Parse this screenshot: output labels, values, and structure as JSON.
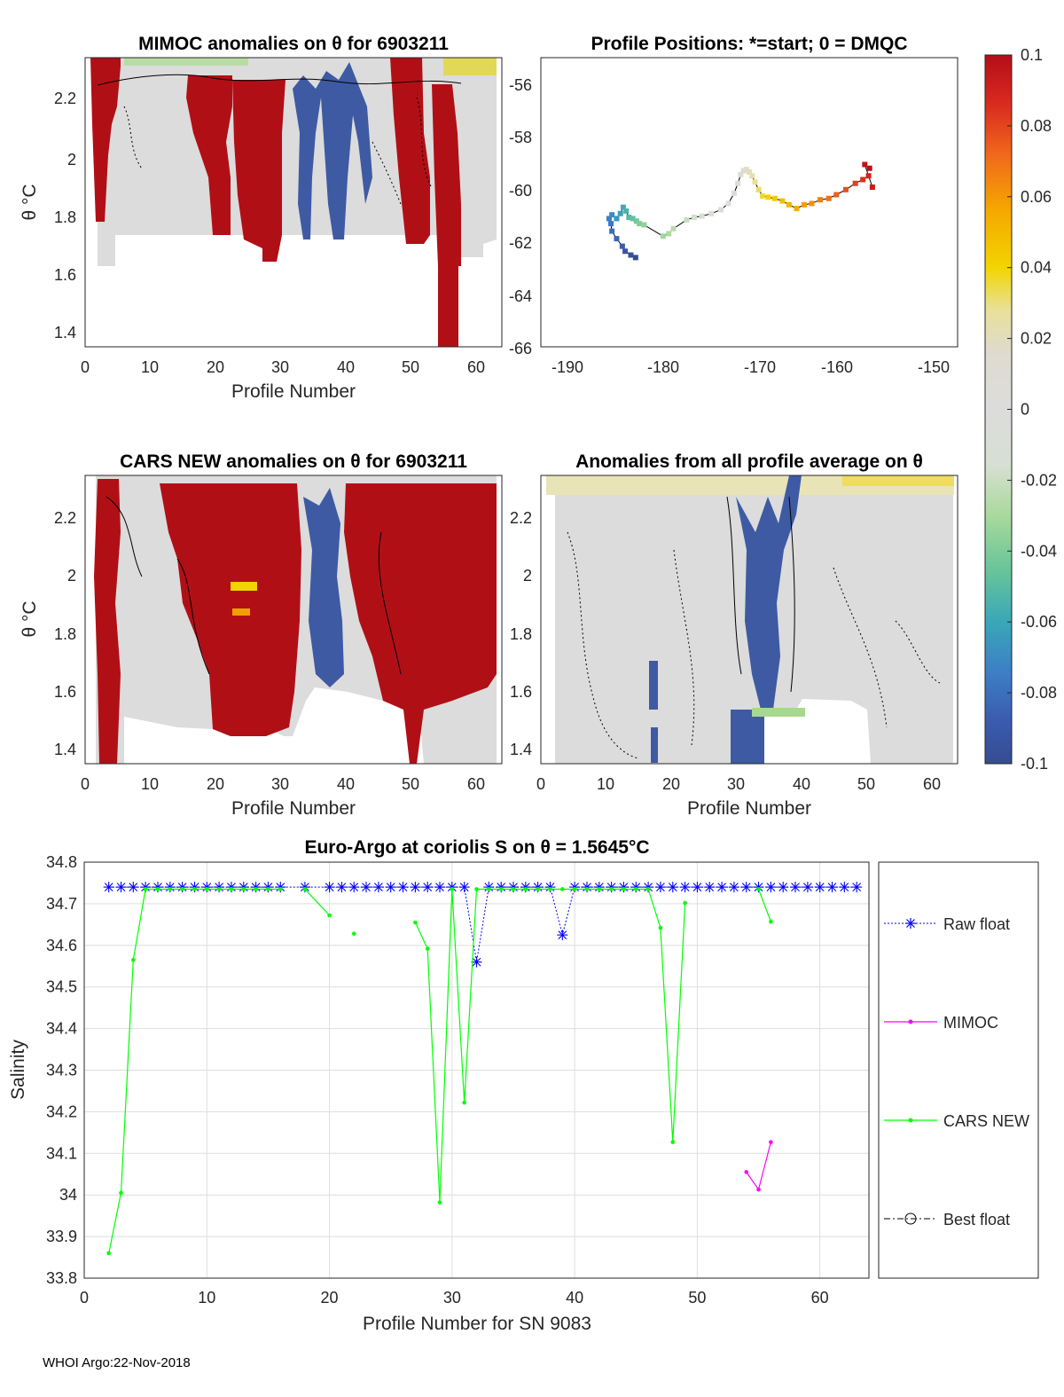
{
  "footer": "WHOI Argo:22-Nov-2018",
  "colorbar": {
    "ticks": [
      "0.1",
      "0.08",
      "0.06",
      "0.04",
      "0.02",
      "0",
      "-0.02",
      "-0.04",
      "-0.06",
      "-0.08",
      "-0.1"
    ],
    "range": [
      -0.1,
      0.1
    ]
  },
  "chart_data": [
    {
      "id": "mimoc_anomalies",
      "type": "heatmap",
      "title": "MIMOC anomalies on θ  for 6903211",
      "xlabel": "Profile Number",
      "ylabel": "θ °C",
      "xlim": [
        0,
        64
      ],
      "ylim": [
        1.35,
        2.33
      ],
      "xticks": [
        "0",
        "10",
        "20",
        "30",
        "40",
        "50",
        "60"
      ],
      "yticks": [
        "1.4",
        "1.6",
        "1.8",
        "2",
        "2.2"
      ],
      "positive_profiles": [
        [
          2,
          7
        ],
        [
          17,
          31
        ],
        [
          46,
          50
        ],
        [
          54,
          57
        ]
      ],
      "negative_profiles": [
        [
          33,
          42
        ]
      ],
      "data_extent": "profiles 2-62"
    },
    {
      "id": "profile_positions",
      "type": "scatter",
      "title": "Profile Positions: *=start; 0 = DMQC",
      "xlim": [
        -192,
        -148
      ],
      "ylim": [
        -66,
        -54.5
      ],
      "xticks": [
        "-190",
        "-180",
        "-170",
        "-160",
        "-150"
      ],
      "yticks": [
        "-56",
        "-58",
        "-60",
        "-62",
        "-64",
        "-66"
      ],
      "lon": [
        -182.0,
        -182.5,
        -183.1,
        -183.4,
        -184.0,
        -184.5,
        -184.6,
        -184.8,
        -184.5,
        -184.0,
        -183.6,
        -183.3,
        -183.0,
        -182.7,
        -182.3,
        -181.9,
        -181.6,
        -181.1,
        -179.1,
        -178.5,
        -178.0,
        -176.6,
        -175.8,
        -175.0,
        -174.0,
        -173.0,
        -172.2,
        -171.6,
        -171.2,
        -170.9,
        -170.6,
        -170.3,
        -170.0,
        -169.7,
        -169.4,
        -169.0,
        -168.6,
        -168.0,
        -167.3,
        -166.5,
        -165.8,
        -165.0,
        -164.2,
        -163.4,
        -162.5,
        -161.6,
        -160.8,
        -159.8,
        -158.8,
        -158.0,
        -157.4,
        -157.0,
        -157.8,
        -157.3
      ],
      "lat": [
        -62.45,
        -62.35,
        -62.2,
        -62.0,
        -61.7,
        -61.4,
        -61.1,
        -60.9,
        -60.75,
        -60.9,
        -60.7,
        -60.45,
        -60.6,
        -60.85,
        -60.9,
        -61.0,
        -61.1,
        -61.15,
        -61.6,
        -61.5,
        -61.3,
        -60.95,
        -60.85,
        -60.8,
        -60.7,
        -60.55,
        -60.3,
        -59.9,
        -59.5,
        -59.15,
        -59.0,
        -58.95,
        -59.05,
        -59.2,
        -59.45,
        -59.75,
        -60.0,
        -60.05,
        -60.1,
        -60.2,
        -60.35,
        -60.5,
        -60.35,
        -60.3,
        -60.15,
        -60.1,
        -59.95,
        -59.75,
        -59.5,
        -59.35,
        -59.2,
        -59.65,
        -58.75,
        -58.9
      ]
    },
    {
      "id": "cars_anomalies",
      "type": "heatmap",
      "title": "CARS NEW anomalies on θ for 6903211",
      "xlabel": "Profile Number",
      "ylabel": "θ °C",
      "xlim": [
        0,
        64
      ],
      "ylim": [
        1.35,
        2.33
      ],
      "xticks": [
        "0",
        "10",
        "20",
        "30",
        "40",
        "50",
        "60"
      ],
      "yticks": [
        "1.4",
        "1.6",
        "1.8",
        "2",
        "2.2"
      ],
      "positive_profiles": [
        [
          2,
          5
        ],
        [
          15,
          33
        ],
        [
          41,
          62
        ]
      ],
      "negative_profiles": [
        [
          34,
          41
        ]
      ]
    },
    {
      "id": "profile_average_anomalies",
      "type": "heatmap",
      "title": "Anomalies from all profile average on θ",
      "xlabel": "Profile Number",
      "ylabel": "",
      "xlim": [
        0,
        64
      ],
      "ylim": [
        1.35,
        2.33
      ],
      "xticks": [
        "0",
        "10",
        "20",
        "30",
        "40",
        "50",
        "60"
      ],
      "yticks": [
        "1.4",
        "1.6",
        "1.8",
        "2",
        "2.2"
      ],
      "negative_profiles": [
        [
          30,
          40
        ]
      ]
    },
    {
      "id": "salinity_series",
      "type": "line",
      "title": "Euro-Argo at coriolis S on θ = 1.5645°C",
      "xlabel": "Profile Number for SN 9083",
      "ylabel": "Salinity",
      "xlim": [
        0,
        64
      ],
      "ylim": [
        33.8,
        34.8
      ],
      "xticks": [
        "0",
        "10",
        "20",
        "30",
        "40",
        "50",
        "60"
      ],
      "yticks": [
        "33.8",
        "33.9",
        "34",
        "34.1",
        "34.2",
        "34.3",
        "34.4",
        "34.5",
        "34.6",
        "34.7",
        "34.8"
      ],
      "legend": [
        "Raw float",
        "MIMOC",
        "CARS NEW",
        "Best float"
      ],
      "series": [
        {
          "name": "Raw float",
          "color": "#0000ff",
          "x": [
            2,
            3,
            4,
            5,
            6,
            7,
            8,
            9,
            10,
            11,
            12,
            13,
            14,
            15,
            16,
            18,
            20,
            21,
            22,
            23,
            24,
            25,
            26,
            27,
            28,
            29,
            30,
            31,
            32,
            33,
            34,
            35,
            36,
            37,
            38,
            39,
            40,
            41,
            42,
            43,
            44,
            45,
            46,
            47,
            48,
            49,
            50,
            51,
            52,
            53,
            54,
            55,
            56,
            57,
            58,
            59,
            60,
            61,
            62,
            63
          ],
          "y": [
            34.74,
            34.74,
            34.74,
            34.74,
            34.74,
            34.74,
            34.74,
            34.74,
            34.74,
            34.74,
            34.74,
            34.74,
            34.74,
            34.74,
            34.74,
            34.74,
            34.74,
            34.74,
            34.74,
            34.74,
            34.74,
            34.74,
            34.74,
            34.74,
            34.74,
            34.74,
            34.74,
            34.74,
            34.56,
            34.74,
            34.74,
            34.74,
            34.74,
            34.74,
            34.74,
            34.625,
            34.74,
            34.74,
            34.74,
            34.74,
            34.74,
            34.74,
            34.74,
            34.74,
            34.74,
            34.74,
            34.74,
            34.74,
            34.74,
            34.74,
            34.74,
            34.74,
            34.74,
            34.74,
            34.74,
            34.74,
            34.74,
            34.74,
            34.74,
            34.74
          ]
        },
        {
          "name": "MIMOC",
          "color": "#ff00ff",
          "x": [
            54,
            55,
            56
          ],
          "y": [
            34.055,
            34.013,
            34.127
          ]
        },
        {
          "name": "CARS NEW",
          "color": "#00ff00",
          "x": [
            2,
            3,
            4,
            5,
            6,
            7,
            8,
            9,
            10,
            11,
            12,
            13,
            14,
            15,
            16,
            null,
            18,
            20,
            null,
            22,
            null,
            27,
            28,
            29,
            30,
            31,
            32,
            33,
            34,
            35,
            36,
            37,
            38,
            39,
            40,
            41,
            42,
            43,
            44,
            45,
            46,
            47,
            48,
            49,
            null,
            55,
            56
          ],
          "y": [
            33.86,
            34.005,
            34.565,
            34.735,
            34.735,
            34.735,
            34.735,
            34.735,
            34.735,
            34.735,
            34.735,
            34.735,
            34.735,
            34.735,
            34.735,
            null,
            34.735,
            34.672,
            null,
            34.628,
            null,
            34.655,
            34.592,
            33.982,
            34.735,
            34.222,
            34.735,
            34.735,
            34.735,
            34.735,
            34.735,
            34.735,
            34.735,
            34.735,
            34.735,
            34.735,
            34.735,
            34.735,
            34.735,
            34.735,
            34.735,
            34.642,
            34.127,
            34.702,
            null,
            34.735,
            34.657
          ]
        },
        {
          "name": "Best float",
          "color": "#000000",
          "x": [],
          "y": []
        }
      ]
    }
  ]
}
